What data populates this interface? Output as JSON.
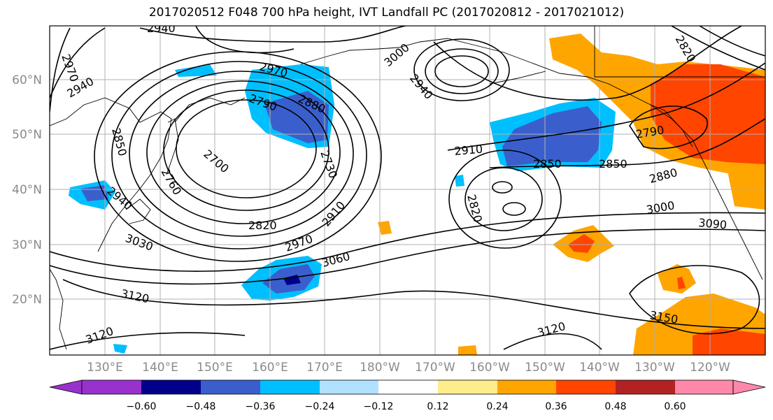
{
  "title": "2017020512 F048 700 hPa height, IVT Landfall PC (2017020812 - 2017021012)",
  "lat_labels": [
    "60°N",
    "50°N",
    "40°N",
    "30°N",
    "20°N"
  ],
  "lon_labels": [
    "130°E",
    "140°E",
    "150°E",
    "160°E",
    "170°E",
    "180°W",
    "170°W",
    "160°W",
    "150°W",
    "140°W",
    "130°W",
    "120°W"
  ],
  "contour_labels": [
    "2940",
    "2970",
    "2940",
    "3000",
    "2970",
    "2790",
    "2880",
    "2850",
    "2700",
    "2760",
    "2730",
    "2940",
    "3030",
    "2820",
    "2970",
    "2910",
    "3060",
    "3120",
    "3120",
    "2910",
    "2850",
    "2850",
    "2820",
    "2880",
    "2790",
    "3000",
    "3090",
    "3120",
    "3150",
    "2820",
    "2940"
  ],
  "colorbar": {
    "ticks": [
      "−0.60",
      "−0.48",
      "−0.36",
      "−0.24",
      "−0.12",
      "0.12",
      "0.24",
      "0.36",
      "0.48",
      "0.60"
    ],
    "colors": [
      "#9932cc",
      "#00008b",
      "#3a5fcd",
      "#00bfff",
      "#b0e2ff",
      "#ffffff",
      "#ffec8b",
      "#ffa500",
      "#ff4500",
      "#b22222",
      "#ff88aa"
    ]
  }
}
